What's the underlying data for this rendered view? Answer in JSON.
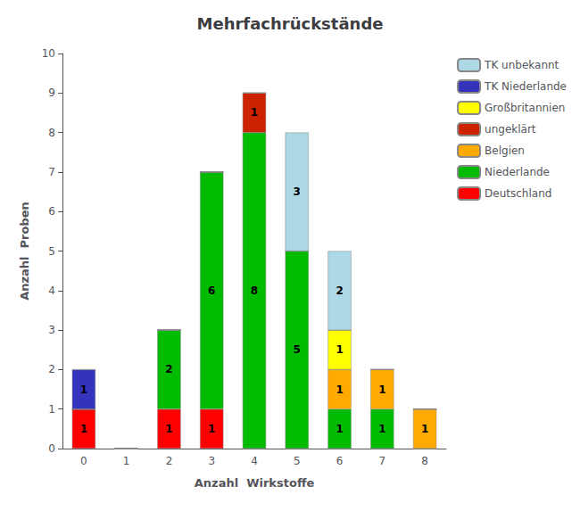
{
  "chart_data": {
    "type": "bar",
    "title": "Mehrfachrückstände",
    "xlabel": "Anzahl  Wirkstoffe",
    "ylabel": "Anzahl  Proben",
    "categories": [
      "0",
      "1",
      "2",
      "3",
      "4",
      "5",
      "6",
      "7",
      "8"
    ],
    "series": [
      {
        "name": "Deutschland",
        "color": "#ff0000",
        "values": [
          1,
          0,
          1,
          1,
          0,
          0,
          0,
          0,
          0
        ]
      },
      {
        "name": "Niederlande",
        "color": "#00bb00",
        "values": [
          0,
          0,
          2,
          6,
          8,
          5,
          1,
          1,
          0
        ]
      },
      {
        "name": "Belgien",
        "color": "#ffaa00",
        "values": [
          0,
          0,
          0,
          0,
          0,
          0,
          1,
          1,
          1
        ]
      },
      {
        "name": "ungeklärt",
        "color": "#cc2200",
        "values": [
          0,
          0,
          0,
          0,
          1,
          0,
          0,
          0,
          0
        ]
      },
      {
        "name": "Großbritannien",
        "color": "#ffff00",
        "values": [
          0,
          0,
          0,
          0,
          0,
          0,
          1,
          0,
          0
        ]
      },
      {
        "name": "TK Niederlande",
        "color": "#3333bb",
        "values": [
          1,
          0,
          0,
          0,
          0,
          0,
          0,
          0,
          0
        ]
      },
      {
        "name": "TK unbekannt",
        "color": "#add8e6",
        "values": [
          0,
          0,
          0,
          0,
          0,
          3,
          2,
          0,
          0
        ]
      }
    ],
    "stacked": true,
    "data_labels": true,
    "ylim": [
      0,
      10
    ],
    "yticks": [
      0,
      1,
      2,
      3,
      4,
      5,
      6,
      7,
      8,
      9,
      10
    ],
    "grid": false,
    "legend": "upper right"
  }
}
